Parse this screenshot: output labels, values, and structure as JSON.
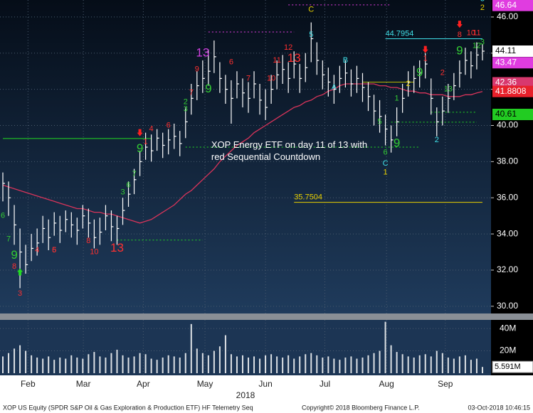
{
  "chart_data": {
    "type": "ohlc",
    "ylim": [
      29.6,
      46.94
    ],
    "yticks": [
      {
        "value": 30,
        "label": "30.00"
      },
      {
        "value": 32,
        "label": "32.00"
      },
      {
        "value": 34,
        "label": "34.00"
      },
      {
        "value": 36,
        "label": "36.00"
      },
      {
        "value": 38,
        "label": "38.00"
      },
      {
        "value": 40,
        "label": "40.00"
      },
      {
        "value": 42,
        "label": "42.00"
      },
      {
        "value": 44,
        "label": "44.00"
      },
      {
        "value": 46,
        "label": "46.00"
      }
    ],
    "xlim": [
      -0.5,
      85.5
    ],
    "xticks": [
      {
        "value": 4.4,
        "label": "Feb"
      },
      {
        "value": 14.1,
        "label": "Mar"
      },
      {
        "value": 24.6,
        "label": "Apr"
      },
      {
        "value": 35.4,
        "label": "May"
      },
      {
        "value": 46,
        "label": "Jun"
      },
      {
        "value": 56.4,
        "label": "Jul"
      },
      {
        "value": 67.2,
        "label": "Aug"
      },
      {
        "value": 77.5,
        "label": "Sep"
      }
    ],
    "x_axis_label": "2018",
    "grid": true,
    "bar_color": "#ffffff",
    "high": [
      37.4,
      36.9,
      35.6,
      34.3,
      33.4,
      34.0,
      34.3,
      35.0,
      34.8,
      35.2,
      35.0,
      35.3,
      35.2,
      34.9,
      35.6,
      35.4,
      34.8,
      34.9,
      35.6,
      35.3,
      35.0,
      36.0,
      36.9,
      37.6,
      38.6,
      39.6,
      39.5,
      39.8,
      39.6,
      39.8,
      40.1,
      39.7,
      41.0,
      42.3,
      43.0,
      43.6,
      44.2,
      44.7,
      43.5,
      42.8,
      42.5,
      43.0,
      42.6,
      42.4,
      43.0,
      42.3,
      42.0,
      42.8,
      43.6,
      43.9,
      43.5,
      44.1,
      43.4,
      44.0,
      45.7,
      44.6,
      43.6,
      43.2,
      42.8,
      43.3,
      43.6,
      43.1,
      43.3,
      42.9,
      42.4,
      41.7,
      41.4,
      40.6,
      40.0,
      41.0,
      42.3,
      43.0,
      43.3,
      43.6,
      44.0,
      42.6,
      41.0,
      41.6,
      42.3,
      42.9,
      43.6,
      44.3,
      44.1,
      44.6,
      44.5
    ],
    "low": [
      35.8,
      35.0,
      33.4,
      31.0,
      31.8,
      32.5,
      32.8,
      33.5,
      33.1,
      33.9,
      33.5,
      34.1,
      33.8,
      33.4,
      34.3,
      33.8,
      33.2,
      33.4,
      34.2,
      33.6,
      33.4,
      34.5,
      35.5,
      36.2,
      37.2,
      38.1,
      38.0,
      38.6,
      38.2,
      38.4,
      38.7,
      38.3,
      39.3,
      40.6,
      41.4,
      41.8,
      42.2,
      42.9,
      41.8,
      41.2,
      40.1,
      41.5,
      41.0,
      40.7,
      41.5,
      40.6,
      40.3,
      41.2,
      42.0,
      42.3,
      41.8,
      42.6,
      41.8,
      42.4,
      43.5,
      42.8,
      42.0,
      41.6,
      41.2,
      41.8,
      42.1,
      41.6,
      41.8,
      41.3,
      40.8,
      40.0,
      39.6,
      38.9,
      38.5,
      39.4,
      40.7,
      41.6,
      41.8,
      42.1,
      42.6,
      40.6,
      39.4,
      40.0,
      40.7,
      41.4,
      42.1,
      42.8,
      42.6,
      43.1,
      43.6
    ],
    "close": [
      36.8,
      36.0,
      34.5,
      33.0,
      32.3,
      33.2,
      33.5,
      34.3,
      33.8,
      34.6,
      34.2,
      34.8,
      34.5,
      34.2,
      35.0,
      34.6,
      33.8,
      34.1,
      35.0,
      34.4,
      34.3,
      35.3,
      36.2,
      37.0,
      38.0,
      38.8,
      38.6,
      39.3,
      38.9,
      39.2,
      39.4,
      39.0,
      40.2,
      41.5,
      42.2,
      42.6,
      43.0,
      43.8,
      42.6,
      42.0,
      41.5,
      42.3,
      41.8,
      41.5,
      42.3,
      41.4,
      41.0,
      42.0,
      42.8,
      43.1,
      42.6,
      43.4,
      42.6,
      43.2,
      44.8,
      43.6,
      42.8,
      42.4,
      42.0,
      42.6,
      42.9,
      42.3,
      42.6,
      42.1,
      41.6,
      40.8,
      40.5,
      39.8,
      39.2,
      40.2,
      41.5,
      42.4,
      42.6,
      42.9,
      43.4,
      41.5,
      40.2,
      40.8,
      41.5,
      42.2,
      42.9,
      43.6,
      43.3,
      43.9,
      44.11
    ],
    "ma": {
      "color": "#d8345a",
      "values": [
        36.7,
        36.6,
        36.5,
        36.4,
        36.3,
        36.2,
        36.1,
        36.0,
        35.9,
        35.8,
        35.7,
        35.6,
        35.5,
        35.4,
        35.4,
        35.3,
        35.2,
        35.2,
        35.1,
        35.1,
        35.0,
        34.9,
        34.8,
        34.7,
        34.6,
        34.7,
        34.8,
        35.0,
        35.2,
        35.4,
        35.6,
        35.9,
        36.2,
        36.4,
        36.7,
        37.0,
        37.3,
        37.6,
        38.0,
        38.3,
        38.6,
        38.9,
        39.1,
        39.3,
        39.6,
        39.8,
        40.0,
        40.2,
        40.4,
        40.6,
        40.8,
        41.0,
        41.1,
        41.3,
        41.4,
        41.6,
        41.7,
        41.9,
        42.0,
        42.2,
        42.3,
        42.3,
        42.3,
        42.3,
        42.3,
        42.3,
        42.2,
        42.2,
        42.1,
        42.1,
        42.0,
        41.9,
        41.9,
        41.8,
        41.8,
        41.7,
        41.7,
        41.7,
        41.6,
        41.6,
        41.6,
        41.7,
        41.7,
        41.8,
        41.8808
      ]
    },
    "volume": {
      "color": "#ffffff",
      "ylim": [
        0,
        47.7
      ],
      "yticks": [
        {
          "value": 20,
          "label": "20M"
        },
        {
          "value": 40,
          "label": "40M"
        }
      ],
      "values": [
        15,
        18,
        22,
        25,
        20,
        16,
        14,
        13,
        15,
        12,
        14,
        13,
        16,
        14,
        13,
        17,
        19,
        15,
        14,
        18,
        21,
        16,
        14,
        15,
        18,
        17,
        13,
        12,
        14,
        16,
        15,
        14,
        18,
        44,
        22,
        18,
        16,
        20,
        24,
        34,
        17,
        15,
        16,
        14,
        15,
        13,
        16,
        17,
        15,
        14,
        16,
        13,
        15,
        17,
        18,
        16,
        14,
        15,
        13,
        12,
        14,
        15,
        13,
        14,
        16,
        18,
        20,
        46,
        25,
        19,
        17,
        15,
        14,
        16,
        17,
        15,
        20,
        18,
        14,
        13,
        15,
        16,
        12,
        13,
        5.591
      ],
      "value_labels": [
        null,
        null,
        null,
        null,
        null,
        null,
        null,
        null,
        null,
        null,
        null,
        null,
        null,
        null,
        null,
        null,
        null,
        null,
        null,
        null,
        null,
        null,
        null,
        null,
        null,
        null,
        null,
        null,
        null,
        null,
        null,
        null,
        null,
        null,
        null,
        null,
        null,
        null,
        null,
        null,
        null,
        null,
        null,
        null,
        null,
        null,
        null,
        null,
        null,
        null,
        null,
        null,
        null,
        null,
        null,
        null,
        null,
        null,
        null,
        null,
        null,
        null,
        null,
        null,
        null,
        null,
        null,
        null,
        null,
        null,
        null,
        null,
        null,
        null,
        null,
        null,
        null,
        null,
        null,
        null,
        null,
        null,
        null,
        null,
        "5.591M"
      ]
    },
    "price_tags": [
      {
        "value": 46.64,
        "label": "46.64",
        "color": "#e03ce0",
        "text_color": "#ffffff"
      },
      {
        "value": 44.11,
        "label": "44.11",
        "color": "#ffffff",
        "text_color": "#000000"
      },
      {
        "value": 43.47,
        "label": "43.47",
        "color": "#e03ce0",
        "text_color": "#ffffff"
      },
      {
        "value": 42.36,
        "label": "42.36",
        "color": "#d8386e",
        "text_color": "#ffffff"
      },
      {
        "value": 41.8808,
        "label": "41.8808",
        "color": "#e8202a",
        "text_color": "#ffffff"
      },
      {
        "value": 40.61,
        "label": "40.61",
        "color": "#22cc22",
        "text_color": "#000000"
      }
    ],
    "levels": [
      {
        "value": 39.28,
        "from": 0,
        "to": 26,
        "color": "#22dd22",
        "style": "solid"
      },
      {
        "value": 38.8,
        "from": 32,
        "to": 73,
        "color": "#22dd22",
        "style": "dotted"
      },
      {
        "value": 33.66,
        "from": 20,
        "to": 35,
        "color": "#22dd22",
        "style": "dotted"
      },
      {
        "value": 46.67,
        "from": 50,
        "to": 68,
        "color": "#e03ce0",
        "style": "dotted"
      },
      {
        "value": 45.17,
        "from": 36,
        "to": 51,
        "color": "#e03ce0",
        "style": "dotted"
      },
      {
        "value": 44.7954,
        "from": 67,
        "to": 84,
        "color": "#40e0e8",
        "style": "solid",
        "label": "44.7954"
      },
      {
        "value": 42.4,
        "from": 63,
        "to": 72,
        "color": "#b8b800",
        "style": "solid"
      },
      {
        "value": 40.73,
        "from": 75,
        "to": 83,
        "color": "#22dd22",
        "style": "dotted"
      },
      {
        "value": 40.18,
        "from": 68,
        "to": 83,
        "color": "#22dd22",
        "style": "dotted"
      },
      {
        "value": 35.7504,
        "from": 51,
        "to": 84,
        "color": "#e8d000",
        "style": "solid",
        "label": "35.7504"
      }
    ],
    "counts": [
      {
        "label": "6",
        "at": 0,
        "value": 35.0,
        "color": "#33cc33"
      },
      {
        "label": "7",
        "at": 1,
        "value": 33.7,
        "color": "#33cc33"
      },
      {
        "label": "9",
        "at": 2,
        "value": 32.8,
        "color": "#33cc33",
        "big": true
      },
      {
        "label": "8",
        "at": 2,
        "value": 32.2,
        "color": "#ff3030"
      },
      {
        "label": "3",
        "at": 3,
        "value": 30.7,
        "color": "#ff3030"
      },
      {
        "label": "4",
        "at": 6,
        "value": 33.1,
        "color": "#ff3030"
      },
      {
        "label": "5",
        "at": 9,
        "value": 33.1,
        "color": "#ff3030"
      },
      {
        "label": "6",
        "at": 9,
        "value": 33.1,
        "color": "#ff3030"
      },
      {
        "label": "8",
        "at": 15,
        "value": 33.6,
        "color": "#ff3030"
      },
      {
        "label": "10",
        "at": 16,
        "value": 33.0,
        "color": "#ff3030"
      },
      {
        "label": "13",
        "at": 20,
        "value": 33.2,
        "color": "#ff3030",
        "big": true
      },
      {
        "label": "3",
        "at": 21,
        "value": 36.3,
        "color": "#33cc33"
      },
      {
        "label": "6",
        "at": 22,
        "value": 36.7,
        "color": "#33cc33"
      },
      {
        "label": "7",
        "at": 23,
        "value": 37.3,
        "color": "#33cc33"
      },
      {
        "label": "9",
        "at": 24,
        "value": 38.7,
        "color": "#33cc33",
        "big": true
      },
      {
        "label": "1",
        "at": 25,
        "value": 39.1,
        "color": "#ff3030"
      },
      {
        "label": "4",
        "at": 26,
        "value": 39.8,
        "color": "#ff3030"
      },
      {
        "label": "6",
        "at": 29,
        "value": 40.0,
        "color": "#ff3030"
      },
      {
        "label": "2",
        "at": 32,
        "value": 41.3,
        "color": "#33cc33"
      },
      {
        "label": "3",
        "at": 32,
        "value": 40.9,
        "color": "#33cc33"
      },
      {
        "label": "7",
        "at": 33,
        "value": 41.8,
        "color": "#ff3030"
      },
      {
        "label": "9",
        "at": 34,
        "value": 43.1,
        "color": "#ff3030"
      },
      {
        "label": "13",
        "at": 35,
        "value": 44.0,
        "color": "#d040e0",
        "big": true
      },
      {
        "label": "9",
        "at": 36,
        "value": 42.0,
        "color": "#33cc33",
        "big": true
      },
      {
        "label": "6",
        "at": 40,
        "value": 43.5,
        "color": "#ff3030"
      },
      {
        "label": "7",
        "at": 43,
        "value": 42.6,
        "color": "#ff3030"
      },
      {
        "label": "10",
        "at": 47,
        "value": 42.6,
        "color": "#ff3030"
      },
      {
        "label": "11",
        "at": 48,
        "value": 43.6,
        "color": "#ff3030"
      },
      {
        "label": "12",
        "at": 50,
        "value": 44.3,
        "color": "#ff3030"
      },
      {
        "label": "13",
        "at": 51,
        "value": 43.7,
        "color": "#ff3030",
        "big": true
      },
      {
        "label": "C",
        "at": 54,
        "value": 46.4,
        "color": "#e8d000"
      },
      {
        "label": "5",
        "at": 54,
        "value": 45.0,
        "color": "#40e0e8"
      },
      {
        "label": "A",
        "at": 58,
        "value": 42.1,
        "color": "#40e0e8"
      },
      {
        "label": "B",
        "at": 60,
        "value": 43.6,
        "color": "#40e0e8"
      },
      {
        "label": "5",
        "at": 66,
        "value": 40.2,
        "color": "#33cc33"
      },
      {
        "label": "6",
        "at": 67,
        "value": 38.5,
        "color": "#33cc33"
      },
      {
        "label": "C",
        "at": 67,
        "value": 37.9,
        "color": "#40e0e8"
      },
      {
        "label": "1",
        "at": 67,
        "value": 37.4,
        "color": "#e8d000"
      },
      {
        "label": "9",
        "at": 69,
        "value": 39.0,
        "color": "#33cc33",
        "big": true
      },
      {
        "label": "1",
        "at": 69,
        "value": 41.5,
        "color": "#33cc33"
      },
      {
        "label": "2",
        "at": 71,
        "value": 42.3,
        "color": "#e8d000"
      },
      {
        "label": "9",
        "at": 73,
        "value": 42.9,
        "color": "#33cc33",
        "big": true
      },
      {
        "label": "1",
        "at": 74,
        "value": 43.7,
        "color": "#ff3030"
      },
      {
        "label": "2",
        "at": 76,
        "value": 39.2,
        "color": "#40e0e8"
      },
      {
        "label": "2",
        "at": 77,
        "value": 42.9,
        "color": "#ff3030"
      },
      {
        "label": "13",
        "at": 78,
        "value": 42.0,
        "color": "#33cc33"
      },
      {
        "label": "9",
        "at": 80,
        "value": 44.1,
        "color": "#33cc33",
        "big": true
      },
      {
        "label": "8",
        "at": 80,
        "value": 45.0,
        "color": "#ff3030"
      },
      {
        "label": "10",
        "at": 82,
        "value": 45.1,
        "color": "#ff3030"
      },
      {
        "label": "11",
        "at": 83,
        "value": 45.1,
        "color": "#ff3030"
      },
      {
        "label": "12",
        "at": 83,
        "value": 44.4,
        "color": "#33cc33"
      },
      {
        "label": "3",
        "at": 84,
        "value": 44.6,
        "color": "#33cc33"
      },
      {
        "label": "3",
        "at": 84,
        "value": 47.0,
        "color": "#40e0e8"
      },
      {
        "label": "2",
        "at": 84,
        "value": 46.5,
        "color": "#e8d000"
      }
    ],
    "arrows": [
      {
        "at": 3,
        "value": 31.9,
        "direction": "up",
        "color": "#22dd22"
      },
      {
        "at": 24,
        "value": 39.6,
        "direction": "down",
        "color": "#ff2020"
      },
      {
        "at": 74,
        "value": 44.2,
        "direction": "down",
        "color": "#ff2020"
      },
      {
        "at": 80,
        "value": 45.6,
        "direction": "down",
        "color": "#ff2020"
      }
    ],
    "annotation": {
      "lines": [
        "XOP Energy ETF on day 11 of 13 with",
        "red Sequential Countdown"
      ],
      "at": 36.5,
      "value": 38.9
    },
    "footer": "XOP US Equity (SPDR S&P Oil & Gas Exploration & Production ETF) HF Telemetry Seq",
    "copyright": "Copyright© 2018 Bloomberg Finance L.P.",
    "timestamp": "03-Oct-2018 10:46:15"
  }
}
